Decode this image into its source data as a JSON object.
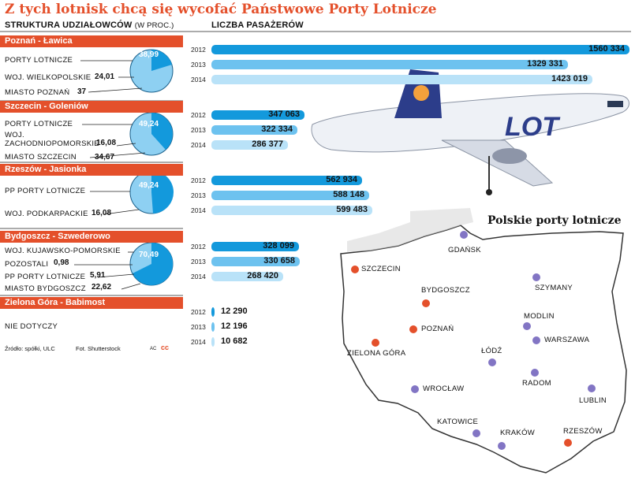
{
  "title": "Z tych lotnisk chcą się wycofać Państwowe Porty Lotnicze",
  "header": {
    "left": "STRUKTURA UDZIAŁOWCÓW",
    "left_unit": "(W PROC.)",
    "right": "LICZBA PASAŻERÓW"
  },
  "chart_data": {
    "type": "bar",
    "title": "Liczba pasażerów",
    "years": [
      "2012",
      "2013",
      "2014"
    ],
    "airports": [
      {
        "name": "Poznań - Ławica",
        "shareholders": [
          {
            "label": "PORTY LOTNICZE",
            "value": "38,99",
            "share": 38.99
          },
          {
            "label": "WOJ. WIELKOPOLSKIE",
            "value": "24,01",
            "share": 24.01
          },
          {
            "label": "MIASTO POZNAŃ",
            "value": "37",
            "share": 37
          }
        ],
        "passengers": [
          {
            "year": "2012",
            "label": "1560 334",
            "value": 1560334
          },
          {
            "year": "2013",
            "label": "1329 331",
            "value": 1329331
          },
          {
            "year": "2014",
            "label": "1423 019",
            "value": 1423019
          }
        ]
      },
      {
        "name": "Szczecin - Goleniów",
        "shareholders": [
          {
            "label": "PORTY LOTNICZE",
            "value": "49,24",
            "share": 49.24
          },
          {
            "label": "WOJ. ZACHODNIOPOMORSKIE",
            "value": "16,08",
            "share": 16.08
          },
          {
            "label": "MIASTO SZCZECIN",
            "value": "34,67",
            "share": 34.67
          }
        ],
        "passengers": [
          {
            "year": "2012",
            "label": "347 063",
            "value": 347063
          },
          {
            "year": "2013",
            "label": "322 334",
            "value": 322334
          },
          {
            "year": "2014",
            "label": "286 377",
            "value": 286377
          }
        ]
      },
      {
        "name": "Rzeszów - Jasionka",
        "shareholders": [
          {
            "label": "PP PORTY LOTNICZE",
            "value": "49,24",
            "share": 49.24
          },
          {
            "label": "WOJ. PODKARPACKIE",
            "value": "16,08",
            "share": 16.08
          }
        ],
        "passengers": [
          {
            "year": "2012",
            "label": "562 934",
            "value": 562934
          },
          {
            "year": "2013",
            "label": "588 148",
            "value": 588148
          },
          {
            "year": "2014",
            "label": "599 483",
            "value": 599483
          }
        ]
      },
      {
        "name": "Bydgoszcz - Szwederowo",
        "shareholders": [
          {
            "label": "WOJ. KUJAWSKO-POMORSKIE",
            "value": "70,49",
            "share": 70.49
          },
          {
            "label": "POZOSTALI",
            "value": "0,98",
            "share": 0.98
          },
          {
            "label": "PP PORTY LOTNICZE",
            "value": "5,91",
            "share": 5.91
          },
          {
            "label": "MIASTO BYDGOSZCZ",
            "value": "22,62",
            "share": 22.62
          }
        ],
        "passengers": [
          {
            "year": "2012",
            "label": "328 099",
            "value": 328099
          },
          {
            "year": "2013",
            "label": "330 658",
            "value": 330658
          },
          {
            "year": "2014",
            "label": "268 420",
            "value": 268420
          }
        ]
      },
      {
        "name": "Zielona Góra - Babimost",
        "note": "NIE DOTYCZY",
        "passengers": [
          {
            "year": "2012",
            "label": "12 290",
            "value": 12290
          },
          {
            "year": "2013",
            "label": "12 196",
            "value": 12196
          },
          {
            "year": "2014",
            "label": "10 682",
            "value": 10682
          }
        ]
      }
    ]
  },
  "footer": {
    "source": "Źródło: spółki, ULC",
    "photo": "Fot. Shutterstock",
    "initials": "AC",
    "logo": "cc"
  },
  "map": {
    "title": "Polskie porty lotnicze",
    "cities": [
      {
        "name": "GDAŃSK",
        "kind": "ppl"
      },
      {
        "name": "SZCZECIN",
        "kind": "withdraw"
      },
      {
        "name": "BYDGOSZCZ",
        "kind": "withdraw"
      },
      {
        "name": "SZYMANY",
        "kind": "ppl"
      },
      {
        "name": "POZNAŃ",
        "kind": "withdraw"
      },
      {
        "name": "MODLIN",
        "kind": "ppl"
      },
      {
        "name": "WARSZAWA",
        "kind": "ppl"
      },
      {
        "name": "ZIELONA GÓRA",
        "kind": "withdraw"
      },
      {
        "name": "ŁÓDŹ",
        "kind": "ppl"
      },
      {
        "name": "RADOM",
        "kind": "ppl"
      },
      {
        "name": "WROCŁAW",
        "kind": "ppl"
      },
      {
        "name": "LUBLIN",
        "kind": "ppl"
      },
      {
        "name": "KATOWICE",
        "kind": "ppl"
      },
      {
        "name": "KRAKÓW",
        "kind": "ppl"
      },
      {
        "name": "RZESZÓW",
        "kind": "withdraw"
      }
    ],
    "colors": {
      "withdraw": "#e4502b",
      "ppl": "#8275c4",
      "land": "#ffffff",
      "outline": "#333333",
      "water": "#d9d9d9"
    }
  },
  "plane": {
    "livery_text": "LOT"
  }
}
